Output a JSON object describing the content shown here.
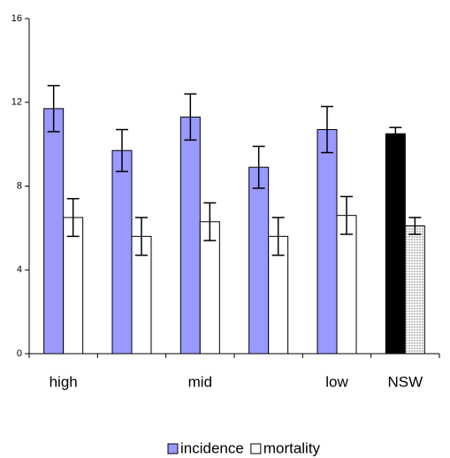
{
  "chart_data": {
    "type": "bar",
    "categories": [
      "high",
      null,
      "mid",
      null,
      "low",
      "NSW"
    ],
    "series": [
      {
        "name": "incidence",
        "color": "#9999ff",
        "colors": [
          "#9999ff",
          "#9999ff",
          "#9999ff",
          "#9999ff",
          "#9999ff",
          "#000000"
        ],
        "values": [
          11.7,
          9.7,
          11.3,
          8.9,
          10.7,
          10.5
        ],
        "errors": [
          1.1,
          1.0,
          1.1,
          1.0,
          1.1,
          0.3
        ]
      },
      {
        "name": "mortality",
        "color": "#ffffff",
        "colors": [
          "#ffffff",
          "#ffffff",
          "#ffffff",
          "#ffffff",
          "#ffffff",
          "#c0c0c0"
        ],
        "values": [
          6.5,
          5.6,
          6.3,
          5.6,
          6.6,
          6.1
        ],
        "errors": [
          0.9,
          0.9,
          0.9,
          0.9,
          0.9,
          0.4
        ]
      }
    ],
    "ylim": [
      0,
      16
    ],
    "yticks": [
      0,
      4,
      8,
      12,
      16
    ],
    "grid": false
  }
}
